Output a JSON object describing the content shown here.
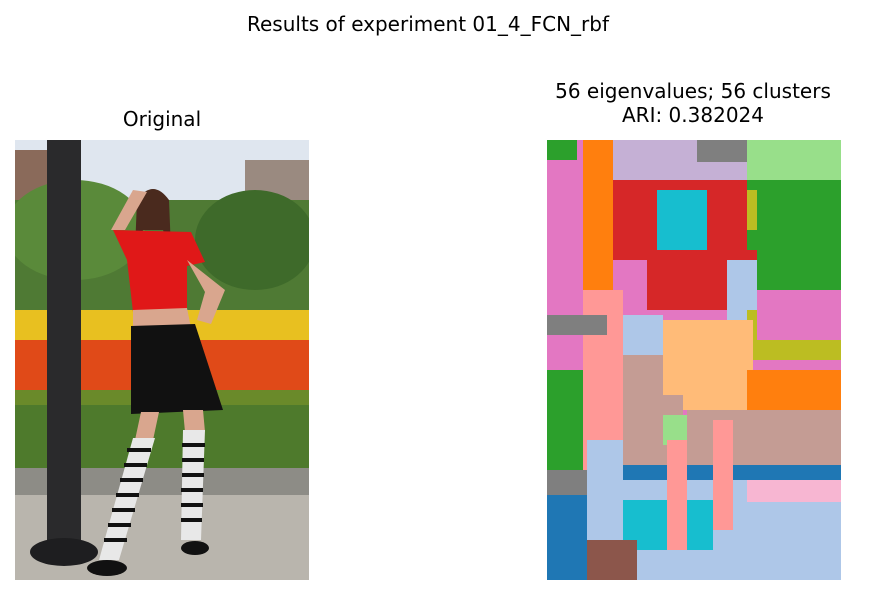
{
  "figure": {
    "suptitle": "Results of experiment 01_4_FCN_rbf",
    "left_panel": {
      "title": "Original"
    },
    "right_panel": {
      "title_line1": "56 eigenvalues; 56 clusters",
      "title_line2": "ARI: 0.382024"
    }
  },
  "colors": {
    "sky": "#dfe6ef",
    "grass": "#4e7a2c",
    "pavement": "#b9b5ad",
    "pole": "#2a2a2c",
    "shirt": "#e01818",
    "skirt": "#111111",
    "skin": "#d9a68e",
    "flowers_red": "#e04a18",
    "flowers_yellow": "#e8c020",
    "seg_green": "#2ca02c",
    "seg_lightgreen": "#98df8a",
    "seg_red": "#d62728",
    "seg_pink": "#e377c2",
    "seg_lightpink": "#ff9896",
    "seg_orange": "#ff7f0e",
    "seg_peach": "#ffbb78",
    "seg_cyan": "#17becf",
    "seg_lightblue": "#aec7e8",
    "seg_blue": "#1f77b4",
    "seg_brown": "#8c564b",
    "seg_gray": "#7f7f7f",
    "seg_olive": "#bcbd22",
    "seg_tan": "#c49c94",
    "seg_purple": "#9467bd",
    "seg_lilac": "#c5b0d5"
  }
}
